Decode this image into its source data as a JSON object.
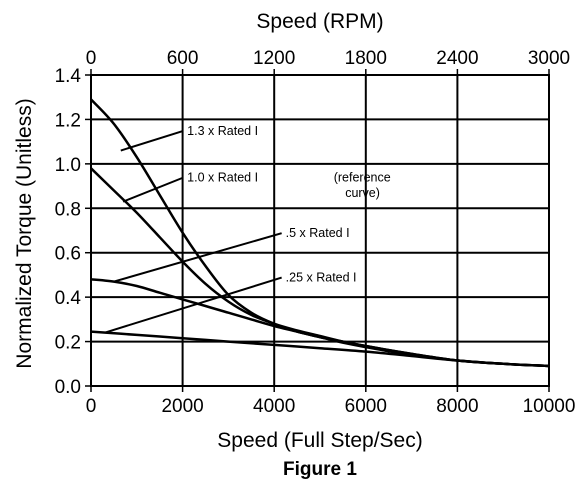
{
  "chart_data": {
    "type": "line",
    "title": "",
    "caption": "Figure 1",
    "xlabel": "Speed (Full Step/Sec)",
    "x2label": "Speed (RPM)",
    "ylabel": "Normalized Torque (Unitless)",
    "xlim": [
      0,
      10000
    ],
    "x2lim": [
      0,
      3000
    ],
    "ylim": [
      0,
      1.4
    ],
    "grid": true,
    "legend": "none",
    "xticks": [
      0,
      2000,
      4000,
      6000,
      8000,
      10000
    ],
    "xtick_labels": [
      "0",
      "2000",
      "4000",
      "6000",
      "8000",
      "10000"
    ],
    "x2ticks": [
      0,
      600,
      1200,
      1800,
      2400,
      3000
    ],
    "x2tick_labels": [
      "0",
      "600",
      "1200",
      "1800",
      "2400",
      "3000"
    ],
    "yticks": [
      0,
      0.2,
      0.4,
      0.6,
      0.8,
      1.0,
      1.2,
      1.4
    ],
    "ytick_labels": [
      "0.0",
      "0.2",
      "0.4",
      "0.6",
      "0.8",
      "1.0",
      "1.2",
      "1.4"
    ],
    "series": [
      {
        "name": "1.3 x Rated I",
        "x": [
          0,
          500,
          1000,
          1500,
          2000,
          2500,
          3000,
          3500,
          4000,
          4500,
          5000,
          5500,
          6000,
          7000,
          8000,
          9000,
          10000
        ],
        "y": [
          1.29,
          1.18,
          1.03,
          0.86,
          0.69,
          0.54,
          0.41,
          0.33,
          0.28,
          0.245,
          0.22,
          0.195,
          0.175,
          0.14,
          0.115,
          0.1,
          0.09
        ]
      },
      {
        "name": "1.0 x Rated I",
        "x": [
          0,
          500,
          1000,
          1500,
          2000,
          2500,
          3000,
          3500,
          4000,
          4500,
          5000,
          5500,
          6000,
          7000,
          8000,
          9000,
          10000
        ],
        "y": [
          0.98,
          0.88,
          0.78,
          0.67,
          0.56,
          0.46,
          0.38,
          0.32,
          0.28,
          0.25,
          0.225,
          0.2,
          0.18,
          0.145,
          0.115,
          0.1,
          0.09
        ]
      },
      {
        "name": ".5 x Rated I",
        "x": [
          0,
          500,
          1000,
          1500,
          2000,
          2500,
          3000,
          3500,
          4000,
          4500,
          5000,
          5500,
          6000,
          7000,
          8000,
          9000,
          10000
        ],
        "y": [
          0.48,
          0.47,
          0.45,
          0.42,
          0.39,
          0.36,
          0.33,
          0.3,
          0.27,
          0.245,
          0.22,
          0.2,
          0.18,
          0.145,
          0.115,
          0.1,
          0.09
        ]
      },
      {
        "name": ".25 x Rated I",
        "x": [
          0,
          1000,
          2000,
          3000,
          4000,
          5000,
          6000,
          7000,
          8000,
          9000,
          10000
        ],
        "y": [
          0.245,
          0.23,
          0.215,
          0.2,
          0.185,
          0.17,
          0.155,
          0.135,
          0.115,
          0.1,
          0.09
        ]
      }
    ],
    "annotations": [
      {
        "label": "1.3 x Rated I",
        "text": "1.3 x Rated I",
        "x": 2100,
        "y": 1.13,
        "pointer_x": 650,
        "pointer_y": 1.06
      },
      {
        "label": "1.0 x Rated I",
        "text": "1.0 x Rated I",
        "x": 2100,
        "y": 0.92,
        "pointer_x": 700,
        "pointer_y": 0.83
      },
      {
        "label": ".5 x Rated I",
        "text": ".5 x Rated I",
        "x": 4250,
        "y": 0.67,
        "pointer_x": 500,
        "pointer_y": 0.47
      },
      {
        "label": ".25 x Rated I",
        "text": ".25 x Rated I",
        "x": 4250,
        "y": 0.47,
        "pointer_x": 300,
        "pointer_y": 0.24
      },
      {
        "label": "(reference",
        "text": "(reference",
        "x": 5300,
        "y": 0.92,
        "pointer_x": null,
        "pointer_y": null
      },
      {
        "label": "curve)",
        "text": "curve)",
        "x": 5550,
        "y": 0.85,
        "pointer_x": null,
        "pointer_y": null
      }
    ]
  }
}
